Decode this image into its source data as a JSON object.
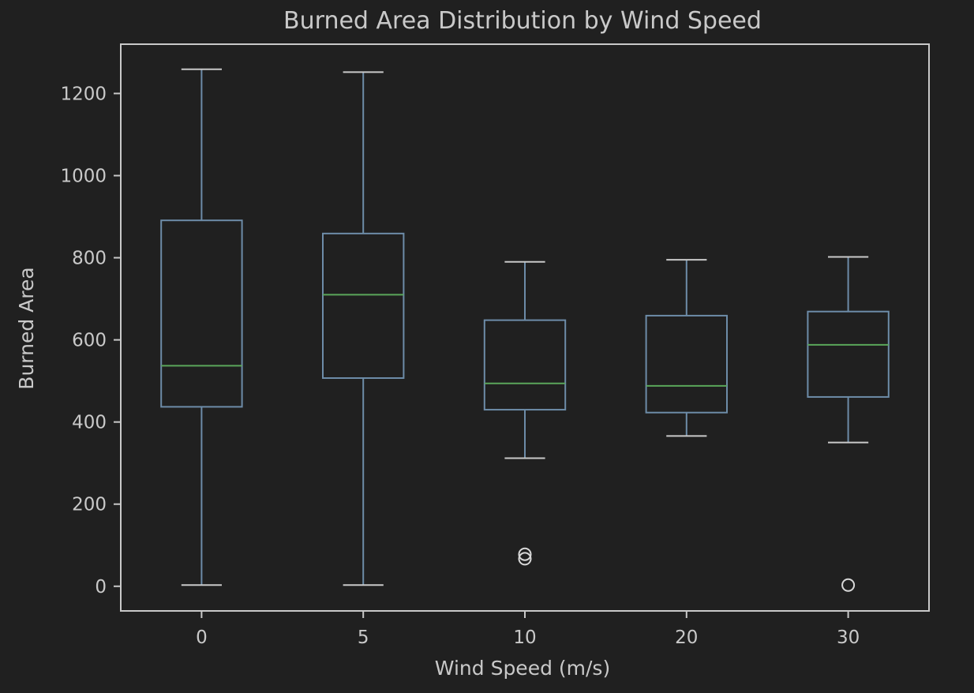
{
  "chart_data": {
    "type": "box",
    "title": "Burned Area Distribution by Wind Speed",
    "xlabel": "Wind Speed (m/s)",
    "ylabel": "Burned Area",
    "categories": [
      "0",
      "5",
      "10",
      "20",
      "30"
    ],
    "yticks": [
      0,
      200,
      400,
      600,
      800,
      1000,
      1200
    ],
    "ylim": [
      -60,
      1320
    ],
    "grid": false,
    "boxes": [
      {
        "category": "0",
        "whisker_low": 3,
        "q1": 437,
        "median": 537,
        "q3": 891,
        "whisker_high": 1259,
        "outliers": []
      },
      {
        "category": "5",
        "whisker_low": 3,
        "q1": 507,
        "median": 710,
        "q3": 859,
        "whisker_high": 1252,
        "outliers": []
      },
      {
        "category": "10",
        "whisker_low": 312,
        "q1": 430,
        "median": 494,
        "q3": 648,
        "whisker_high": 790,
        "outliers": [
          67,
          78
        ]
      },
      {
        "category": "20",
        "whisker_low": 366,
        "q1": 423,
        "median": 488,
        "q3": 659,
        "whisker_high": 795,
        "outliers": []
      },
      {
        "category": "30",
        "whisker_low": 350,
        "q1": 461,
        "median": 588,
        "q3": 669,
        "whisker_high": 802,
        "outliers": [
          3
        ]
      }
    ]
  },
  "colors": {
    "background": "#202020",
    "axes": "#c9c9c9",
    "text": "#c9c9c9",
    "box": "#6d8ca8",
    "median": "#5aa65a",
    "outlier": "#d8d8d8"
  }
}
